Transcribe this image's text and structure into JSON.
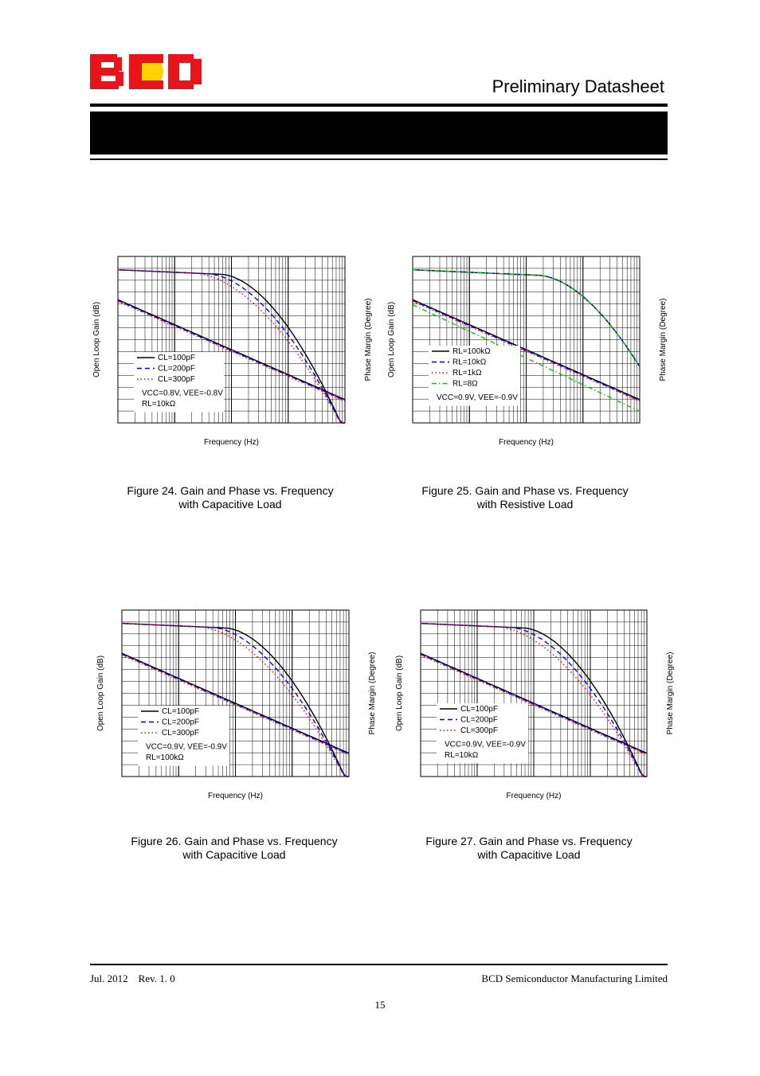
{
  "header": {
    "logo_text": "BCD",
    "title": "Preliminary Datasheet",
    "banner_text": ""
  },
  "colors": {
    "logo_red": "#e8141c",
    "logo_yellow": "#ffd200",
    "series_black": "#000000",
    "series_blue": "#0000ff",
    "series_red": "#ff0000",
    "series_green": "#00cc00"
  },
  "figures": [
    {
      "id": "fig24",
      "ylabel_left": "Open Loop Gain (dB)",
      "ylabel_right": "Phase Margin (Degree)",
      "xlabel": "Frequency (Hz)",
      "caption_line1": "Figure 24. Gain and Phase vs. Frequency",
      "caption_line2": "with Capacitive Load",
      "legend": [
        {
          "label": "CL=100pF",
          "style": "solid",
          "color": "#000000"
        },
        {
          "label": "CL=200pF",
          "style": "dash",
          "color": "#0000ff"
        },
        {
          "label": "CL=300pF",
          "style": "dot",
          "color": "#ff0000"
        }
      ],
      "conditions": [
        "VCC=0.8V, VEE=-0.8V",
        "RL=10kΩ"
      ]
    },
    {
      "id": "fig25",
      "ylabel_left": "Open Loop Gain (dB)",
      "ylabel_right": "Phase Margin (Degree)",
      "xlabel": "Frequency (Hz)",
      "caption_line1": "Figure 25. Gain and Phase vs. Frequency",
      "caption_line2": "with Resistive Load",
      "legend": [
        {
          "label": "RL=100kΩ",
          "style": "solid",
          "color": "#000000"
        },
        {
          "label": "RL=10kΩ",
          "style": "dash",
          "color": "#0000ff"
        },
        {
          "label": "RL=1kΩ",
          "style": "dot",
          "color": "#ff0000"
        },
        {
          "label": "RL=8Ω",
          "style": "dashdot",
          "color": "#00cc00"
        }
      ],
      "conditions": [
        "VCC=0.9V, VEE=-0.9V"
      ]
    },
    {
      "id": "fig26",
      "ylabel_left": "Open Loop Gain (dB)",
      "ylabel_right": "Phase Margin (Degree)",
      "xlabel": "Frequency (Hz)",
      "caption_line1": "Figure 26. Gain and Phase vs. Frequency",
      "caption_line2": "with Capacitive Load",
      "legend": [
        {
          "label": "CL=100pF",
          "style": "solid",
          "color": "#000000"
        },
        {
          "label": "CL=200pF",
          "style": "dash",
          "color": "#0000ff"
        },
        {
          "label": "CL=300pF",
          "style": "dot",
          "color": "#ff0000"
        }
      ],
      "conditions": [
        "VCC=0.9V, VEE=-0.9V",
        "RL=100kΩ"
      ]
    },
    {
      "id": "fig27",
      "ylabel_left": "Open Loop Gain (dB)",
      "ylabel_right": "Phase Margin (Degree)",
      "xlabel": "Frequency (Hz)",
      "caption_line1": "Figure 27. Gain and Phase vs. Frequency",
      "caption_line2": "with Capacitive Load",
      "legend": [
        {
          "label": "CL=100pF",
          "style": "solid",
          "color": "#000000"
        },
        {
          "label": "CL=200pF",
          "style": "dash",
          "color": "#0000ff"
        },
        {
          "label": "CL=300pF",
          "style": "dot",
          "color": "#ff0000"
        }
      ],
      "conditions": [
        "VCC=0.9V, VEE=-0.9V",
        "RL=10kΩ"
      ]
    }
  ],
  "footer": {
    "date_rev": "Jul. 2012    Rev. 1. 0",
    "company": "BCD Semiconductor Manufacturing Limited",
    "page_number": "15"
  }
}
